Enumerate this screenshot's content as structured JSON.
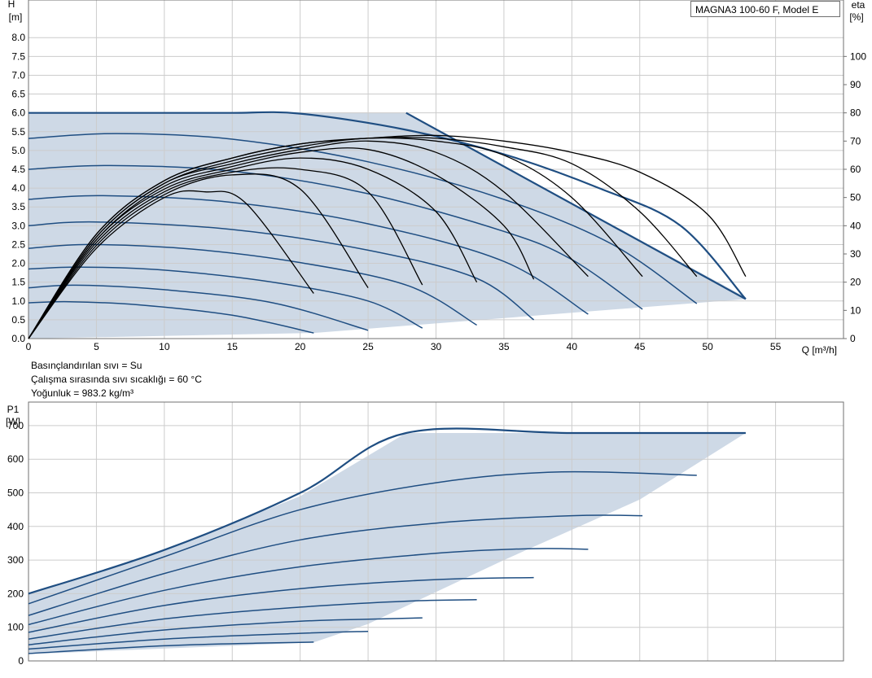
{
  "chart_data": [
    {
      "type": "line",
      "model_label": "MAGNA3 100-60 F, Model E",
      "ylabel": "H",
      "yunit": "[m]",
      "y2label": "eta",
      "y2unit": "[%]",
      "xlabel": "Q [m³/h]",
      "xlim": [
        0,
        60
      ],
      "ylim": [
        0,
        9
      ],
      "y2lim": [
        0,
        100
      ],
      "x_ticks": [
        0,
        5,
        10,
        15,
        20,
        25,
        30,
        35,
        40,
        45,
        50,
        55
      ],
      "y_ticks": [
        "0.0",
        "0.5",
        "1.0",
        "1.5",
        "2.0",
        "2.5",
        "3.0",
        "3.5",
        "4.0",
        "4.5",
        "5.0",
        "5.5",
        "6.0",
        "6.5",
        "7.0",
        "7.5",
        "8.0"
      ],
      "y2_ticks": [
        0,
        10,
        20,
        30,
        40,
        50,
        60,
        70,
        80,
        90,
        100
      ],
      "grid": true,
      "operating_envelope": {
        "x": [
          0,
          27.8,
          52.8,
          52.8,
          21.0,
          0
        ],
        "y": [
          6.0,
          6.0,
          1.1,
          1.05,
          0.15,
          0
        ]
      },
      "head_curves": [
        {
          "x": [
            0,
            5,
            10,
            15,
            20,
            27.8,
            35,
            42,
            48,
            52.8
          ],
          "y": [
            6.0,
            6.0,
            6.0,
            6.0,
            5.98,
            5.55,
            4.9,
            4.0,
            3.0,
            1.05
          ]
        },
        {
          "x": [
            0,
            6.5,
            15,
            25,
            35,
            43,
            49.2
          ],
          "y": [
            5.32,
            5.45,
            5.3,
            4.7,
            3.7,
            2.5,
            0.93
          ]
        },
        {
          "x": [
            0,
            6,
            15,
            25,
            35,
            40,
            45.2
          ],
          "y": [
            4.5,
            4.6,
            4.45,
            3.85,
            2.85,
            2.1,
            0.78
          ]
        },
        {
          "x": [
            0,
            5.5,
            15,
            25,
            35,
            41.2
          ],
          "y": [
            3.7,
            3.8,
            3.62,
            3.05,
            2.05,
            0.65
          ]
        },
        {
          "x": [
            0,
            5,
            15,
            25,
            33,
            37.2
          ],
          "y": [
            3.0,
            3.1,
            2.9,
            2.35,
            1.6,
            0.5
          ]
        },
        {
          "x": [
            0,
            4.5,
            12,
            20,
            28,
            33.0
          ],
          "y": [
            2.4,
            2.5,
            2.38,
            2.02,
            1.4,
            0.36
          ]
        },
        {
          "x": [
            0,
            4,
            10,
            18,
            25,
            29.0
          ],
          "y": [
            1.85,
            1.9,
            1.82,
            1.5,
            1.0,
            0.28
          ]
        },
        {
          "x": [
            0,
            3.5,
            10,
            18,
            25.0
          ],
          "y": [
            1.35,
            1.42,
            1.3,
            0.95,
            0.22
          ]
        },
        {
          "x": [
            0,
            3,
            8,
            15,
            21.0
          ],
          "y": [
            0.95,
            0.98,
            0.9,
            0.62,
            0.15
          ]
        }
      ],
      "efficiency_curves": [
        {
          "x": [
            0,
            5,
            10,
            13,
            16,
            21.0
          ],
          "y": [
            0,
            32,
            50,
            52,
            48,
            16
          ]
        },
        {
          "x": [
            0,
            5,
            10,
            15,
            20,
            25.0
          ],
          "y": [
            0,
            33,
            51,
            58,
            53,
            18
          ]
        },
        {
          "x": [
            0,
            5,
            10,
            15,
            20,
            25,
            29.0
          ],
          "y": [
            0,
            34,
            52,
            59,
            60,
            52,
            19
          ]
        },
        {
          "x": [
            0,
            5,
            10,
            15,
            20,
            25,
            30,
            33.0
          ],
          "y": [
            0,
            35,
            53,
            60,
            64,
            60,
            45,
            20
          ]
        },
        {
          "x": [
            0,
            5,
            10,
            15,
            20,
            25,
            30,
            35,
            37.2
          ],
          "y": [
            0,
            35,
            54,
            61,
            66,
            67,
            58,
            40,
            21
          ]
        },
        {
          "x": [
            0,
            5,
            10,
            15,
            20,
            25,
            30,
            35,
            41.2
          ],
          "y": [
            0,
            36,
            55,
            62,
            67,
            70,
            66,
            52,
            22
          ]
        },
        {
          "x": [
            0,
            5,
            10,
            15,
            20,
            25,
            30,
            35,
            40,
            45.2
          ],
          "y": [
            0,
            36,
            55,
            63,
            68,
            71,
            70,
            65,
            50,
            22
          ]
        },
        {
          "x": [
            0,
            5,
            10,
            15,
            20,
            25,
            30,
            35,
            40,
            45,
            49.2
          ],
          "y": [
            0,
            37,
            56,
            64,
            69,
            71,
            71,
            68,
            62,
            45,
            22
          ]
        },
        {
          "x": [
            0,
            5,
            10,
            15,
            20,
            25,
            30,
            35,
            40,
            45,
            50,
            52.8
          ],
          "y": [
            0,
            37,
            56,
            64,
            69,
            71,
            72,
            70,
            66,
            59,
            44,
            22
          ]
        }
      ]
    },
    {
      "type": "line",
      "ylabel": "P1",
      "yunit": "[W]",
      "xlim": [
        0,
        60
      ],
      "ylim": [
        0,
        770
      ],
      "y_ticks": [
        0,
        100,
        200,
        300,
        400,
        500,
        600,
        700
      ],
      "grid": true,
      "operating_envelope": {
        "x": [
          0,
          10,
          20,
          27.8,
          52.8,
          45,
          35,
          25,
          21.0,
          0
        ],
        "y": [
          200,
          330,
          490,
          678,
          678,
          480,
          300,
          110,
          55,
          20
        ]
      },
      "power_curves": [
        {
          "x": [
            0,
            10,
            20,
            27.8,
            40,
            52.8
          ],
          "y": [
            200,
            330,
            500,
            678,
            678,
            678
          ]
        },
        {
          "x": [
            0,
            10,
            20,
            30,
            39,
            49.2
          ],
          "y": [
            170,
            310,
            450,
            530,
            562,
            552
          ]
        },
        {
          "x": [
            0,
            10,
            20,
            30,
            40,
            45.2
          ],
          "y": [
            135,
            260,
            360,
            410,
            432,
            432
          ]
        },
        {
          "x": [
            0,
            10,
            20,
            30,
            37,
            41.2
          ],
          "y": [
            108,
            210,
            280,
            320,
            334,
            332
          ]
        },
        {
          "x": [
            0,
            10,
            20,
            30,
            37.2
          ],
          "y": [
            85,
            165,
            215,
            242,
            248
          ]
        },
        {
          "x": [
            0,
            10,
            20,
            28,
            33.0
          ],
          "y": [
            65,
            125,
            160,
            178,
            182
          ]
        },
        {
          "x": [
            0,
            10,
            20,
            25,
            29.0
          ],
          "y": [
            48,
            92,
            118,
            124,
            128
          ]
        },
        {
          "x": [
            0,
            10,
            20,
            25.0
          ],
          "y": [
            35,
            65,
            82,
            88
          ]
        },
        {
          "x": [
            0,
            10,
            17,
            21.0
          ],
          "y": [
            22,
            45,
            53,
            56
          ]
        }
      ]
    }
  ],
  "notes": [
    "Basınçlandırılan sıvı = Su",
    "Çalışma sırasında sıvı sıcaklığı = 60 °C",
    "Yoğunluk = 983.2 kg/m³"
  ],
  "colors": {
    "envelope_fill": "#ced9e6",
    "curve": "#1f4e82",
    "efficiency": "#000000",
    "grid": "#cccccc",
    "frame": "#707070"
  }
}
